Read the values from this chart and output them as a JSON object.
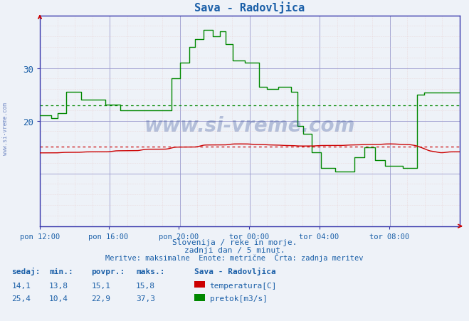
{
  "title": "Sava - Radovljica",
  "title_color": "#1a5fa8",
  "bg_color": "#eef2f8",
  "plot_bg_color": "#eef2f8",
  "grid_v_color": "#9999cc",
  "grid_h_major_color": "#9999cc",
  "grid_h_minor_color": "#e8c8c8",
  "axis_color": "#3333aa",
  "arrow_color": "#cc0000",
  "xlabel_ticks": [
    "pon 12:00",
    "pon 16:00",
    "pon 20:00",
    "tor 00:00",
    "tor 04:00",
    "tor 08:00"
  ],
  "ylim": [
    0,
    40
  ],
  "temp_color": "#cc0000",
  "flow_color": "#008800",
  "temp_mean": 15.1,
  "flow_mean": 22.9,
  "text_color": "#1a5fa8",
  "subtitle1": "Slovenija / reke in morje.",
  "subtitle2": "zadnji dan / 5 minut.",
  "subtitle3": "Meritve: maksimalne  Enote: metrične  Črta: zadnja meritev",
  "legend_title": "Sava - Radovljica",
  "legend_temp": "temperatura[C]",
  "legend_flow": "pretok[m3/s]",
  "header_sedaj": "sedaj:",
  "header_min": "min.:",
  "header_povpr": "povpr.:",
  "header_maks": "maks.:",
  "temp_sedaj": "14,1",
  "temp_min": "13,8",
  "temp_povpr": "15,1",
  "temp_maks": "15,8",
  "flow_sedaj": "25,4",
  "flow_min": "10,4",
  "flow_povpr": "22,9",
  "flow_maks": "37,3",
  "watermark": "www.si-vreme.com",
  "n_points": 288
}
